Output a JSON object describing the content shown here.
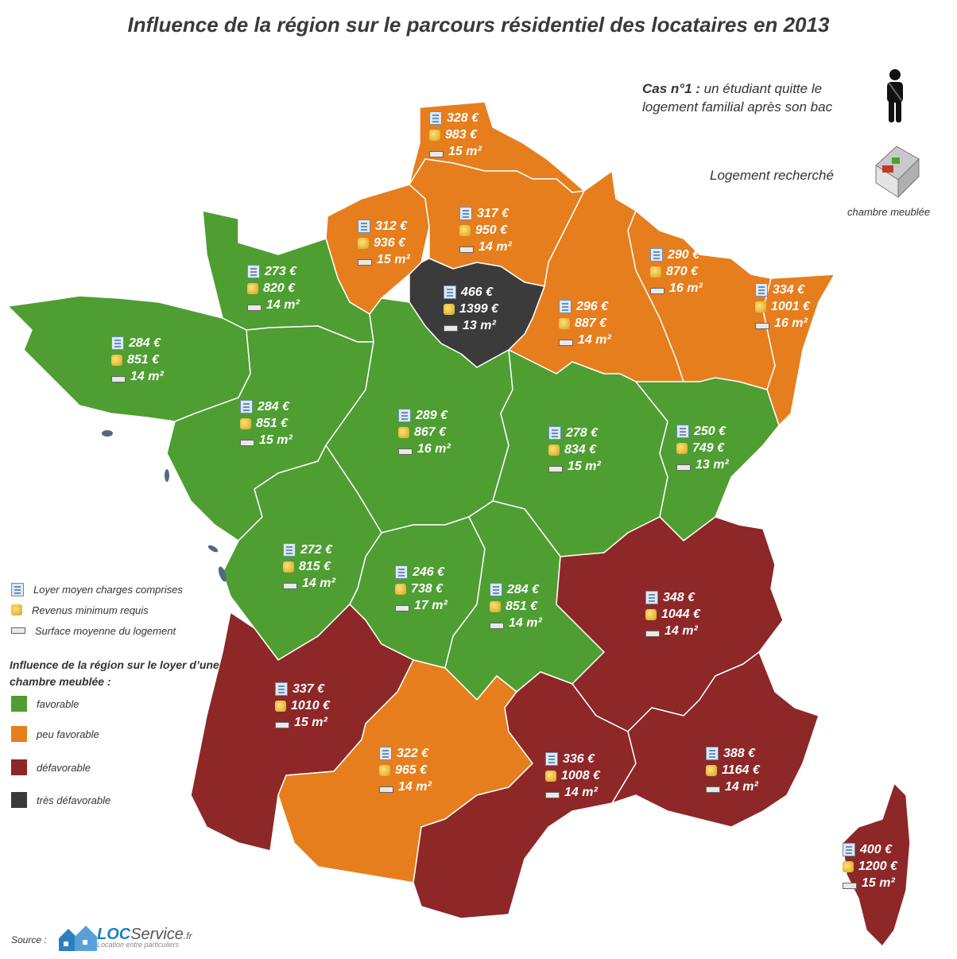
{
  "title": "Influence de la région sur le parcours résidentiel des locataires en 2013",
  "case": {
    "label": "Cas n°1 :",
    "text": "un étudiant quitte le logement familial après son bac",
    "sought_label": "Logement recherché",
    "sought_value": "chambre meublée"
  },
  "colors": {
    "favorable": "#4e9e32",
    "peu_favorable": "#e67e1d",
    "defavorable": "#8e2727",
    "tres_defavorable": "#3b3b3b"
  },
  "legend": {
    "rent": "Loyer moyen charges comprises",
    "income": "Revenus minimum requis",
    "surface": "Surface moyenne du logement",
    "influence_title": "Influence de la région sur le loyer d’une chambre meublée :",
    "classes": [
      "favorable",
      "peu favorable",
      "défavorable",
      "très défavorable"
    ]
  },
  "regions": [
    {
      "rent": "328 €",
      "income": "983 €",
      "surface": "15 m²",
      "class": "peu_favorable"
    },
    {
      "rent": "312 €",
      "income": "936 €",
      "surface": "15 m²",
      "class": "peu_favorable"
    },
    {
      "rent": "317 €",
      "income": "950 €",
      "surface": "14 m²",
      "class": "peu_favorable"
    },
    {
      "rent": "290 €",
      "income": "870 €",
      "surface": "16 m²",
      "class": "peu_favorable"
    },
    {
      "rent": "334 €",
      "income": "1001 €",
      "surface": "16 m²",
      "class": "peu_favorable"
    },
    {
      "rent": "466 €",
      "income": "1399 €",
      "surface": "13 m²",
      "class": "tres_defavorable"
    },
    {
      "rent": "296 €",
      "income": "887 €",
      "surface": "14 m²",
      "class": "peu_favorable"
    },
    {
      "rent": "273 €",
      "income": "820 €",
      "surface": "14 m²",
      "class": "favorable"
    },
    {
      "rent": "284 €",
      "income": "851 €",
      "surface": "14 m²",
      "class": "favorable"
    },
    {
      "rent": "284 €",
      "income": "851 €",
      "surface": "15 m²",
      "class": "favorable"
    },
    {
      "rent": "289 €",
      "income": "867 €",
      "surface": "16 m²",
      "class": "favorable"
    },
    {
      "rent": "278 €",
      "income": "834 €",
      "surface": "15 m²",
      "class": "favorable"
    },
    {
      "rent": "250 €",
      "income": "749 €",
      "surface": "13 m²",
      "class": "favorable"
    },
    {
      "rent": "272 €",
      "income": "815 €",
      "surface": "14 m²",
      "class": "favorable"
    },
    {
      "rent": "246 €",
      "income": "738 €",
      "surface": "17 m²",
      "class": "favorable"
    },
    {
      "rent": "284 €",
      "income": "851 €",
      "surface": "14 m²",
      "class": "favorable"
    },
    {
      "rent": "348 €",
      "income": "1044 €",
      "surface": "14 m²",
      "class": "defavorable"
    },
    {
      "rent": "337 €",
      "income": "1010 €",
      "surface": "15 m²",
      "class": "defavorable"
    },
    {
      "rent": "322 €",
      "income": "965 €",
      "surface": "14 m²",
      "class": "peu_favorable"
    },
    {
      "rent": "336 €",
      "income": "1008 €",
      "surface": "14 m²",
      "class": "defavorable"
    },
    {
      "rent": "388 €",
      "income": "1164 €",
      "surface": "14 m²",
      "class": "defavorable"
    },
    {
      "rent": "400 €",
      "income": "1200 €",
      "surface": "15 m²",
      "class": "defavorable"
    }
  ],
  "source": {
    "label": "Source :",
    "brand_a": "LOC",
    "brand_b": "Service",
    "brand_c": ".fr",
    "tagline": "Location entre particuliers"
  }
}
